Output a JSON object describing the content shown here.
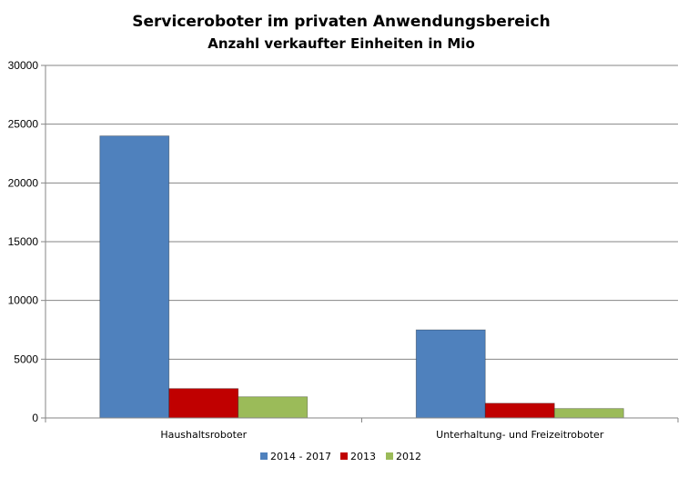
{
  "chart_data": {
    "type": "bar",
    "title": "Serviceroboter  im privaten  Anwendungsbereich",
    "subtitle": "Anzahl verkaufter Einheiten in Mio",
    "categories": [
      "Haushaltsroboter",
      "Unterhaltung- und Freizeitroboter"
    ],
    "series": [
      {
        "name": "2014 - 2017",
        "values": [
          24000,
          7500
        ],
        "color": "#4F81BD"
      },
      {
        "name": "2013",
        "values": [
          2500,
          1250
        ],
        "color": "#C00000"
      },
      {
        "name": "2012",
        "values": [
          1800,
          800
        ],
        "color": "#9BBB59"
      }
    ],
    "ylim": [
      0,
      30000
    ],
    "yticks": [
      0,
      5000,
      10000,
      15000,
      20000,
      25000,
      30000
    ],
    "grid": true,
    "legend_position": "bottom"
  }
}
